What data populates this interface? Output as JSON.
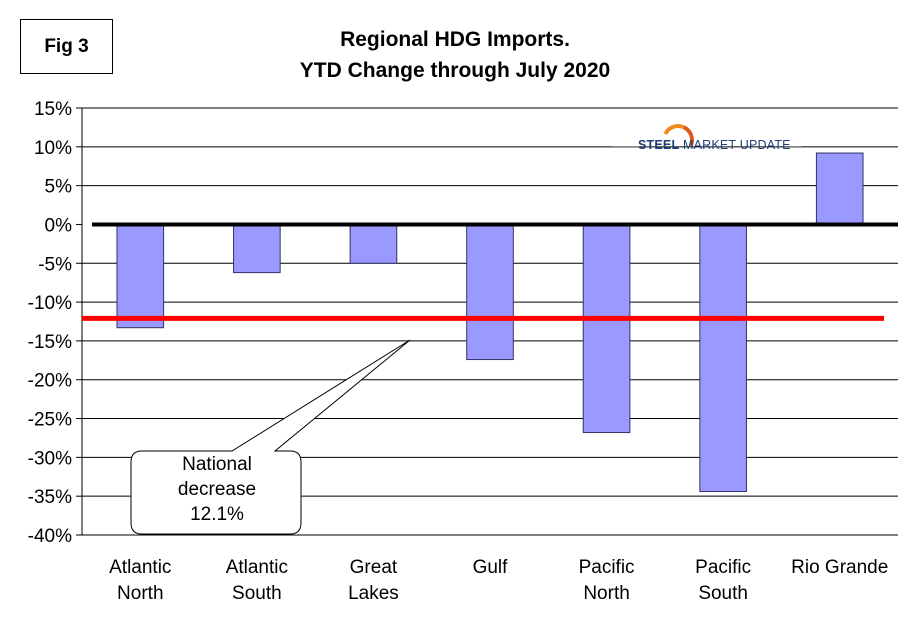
{
  "fig_label": "Fig 3",
  "logo": {
    "bold_part": "STEEL",
    "rest": "MARKET UPDATE"
  },
  "callout": {
    "line1": "National",
    "line2": "decrease",
    "line3": "12.1%"
  },
  "colors": {
    "bar_fill": "#9999ff",
    "bar_stroke": "#333366",
    "national_line": "#ff0000",
    "zero_line": "#000000",
    "grid": "#000000"
  },
  "chart_data": {
    "type": "bar",
    "title": "Regional HDG Imports.",
    "subtitle": "YTD Change through July 2020",
    "xlabel": "",
    "ylabel": "",
    "ylim": [
      -40,
      15
    ],
    "ytick_step": 5,
    "y_format": "percent",
    "categories": [
      [
        "Atlantic",
        "North"
      ],
      [
        "Atlantic",
        "South"
      ],
      [
        "Great",
        "Lakes"
      ],
      [
        "Gulf"
      ],
      [
        "Pacific",
        "North"
      ],
      [
        "Pacific",
        "South"
      ],
      [
        "Rio Grande"
      ]
    ],
    "values": [
      -13.3,
      -6.2,
      -5.0,
      -17.4,
      -26.8,
      -34.4,
      9.2
    ],
    "reference_line": {
      "name": "National decrease",
      "value": -12.1
    },
    "grid": true
  }
}
